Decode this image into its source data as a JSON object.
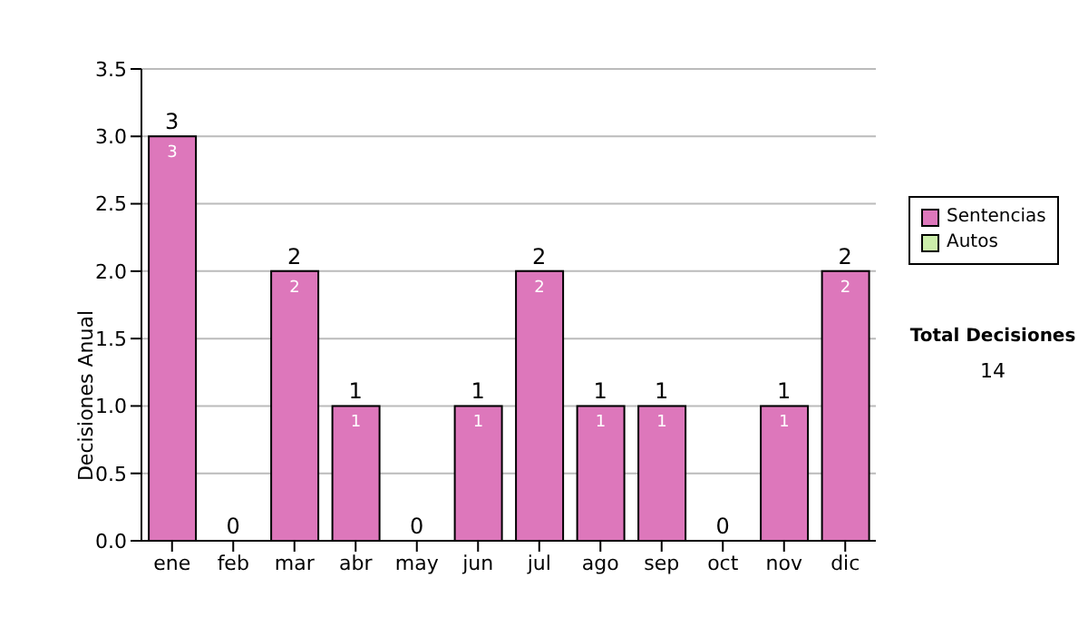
{
  "chart_data": {
    "type": "bar",
    "ylabel": "Decisiones Anual",
    "categories": [
      "ene",
      "feb",
      "mar",
      "abr",
      "may",
      "jun",
      "jul",
      "ago",
      "sep",
      "oct",
      "nov",
      "dic"
    ],
    "stacked": true,
    "series": [
      {
        "name": "Sentencias",
        "color": "#dd77bb",
        "values": [
          3,
          0,
          2,
          1,
          0,
          1,
          2,
          1,
          1,
          0,
          1,
          2
        ],
        "value_labels": [
          "3",
          null,
          "2",
          "1",
          null,
          "1",
          "2",
          "1",
          "1",
          null,
          "1",
          "2"
        ]
      },
      {
        "name": "Autos",
        "color": "#cceeaa",
        "values": [
          0,
          0,
          0,
          0,
          0,
          0,
          0,
          0,
          0,
          0,
          0,
          0
        ]
      }
    ],
    "totals": [
      "3",
      "0",
      "2",
      "1",
      "0",
      "1",
      "2",
      "1",
      "1",
      "0",
      "1",
      "2"
    ],
    "ylim": [
      0,
      3.5
    ],
    "yticks": [
      {
        "value": 0,
        "label": "0.0"
      },
      {
        "value": 0.5,
        "label": "0.5"
      },
      {
        "value": 1,
        "label": "1.0"
      },
      {
        "value": 1.5,
        "label": "1.5"
      },
      {
        "value": 2,
        "label": "2.0"
      },
      {
        "value": 2.5,
        "label": "2.5"
      },
      {
        "value": 3,
        "label": "3.0"
      },
      {
        "value": 3.5,
        "label": "3.5"
      }
    ],
    "grid": "y",
    "legend": "right",
    "annotations": [
      "Total Decisiones",
      "14"
    ]
  }
}
